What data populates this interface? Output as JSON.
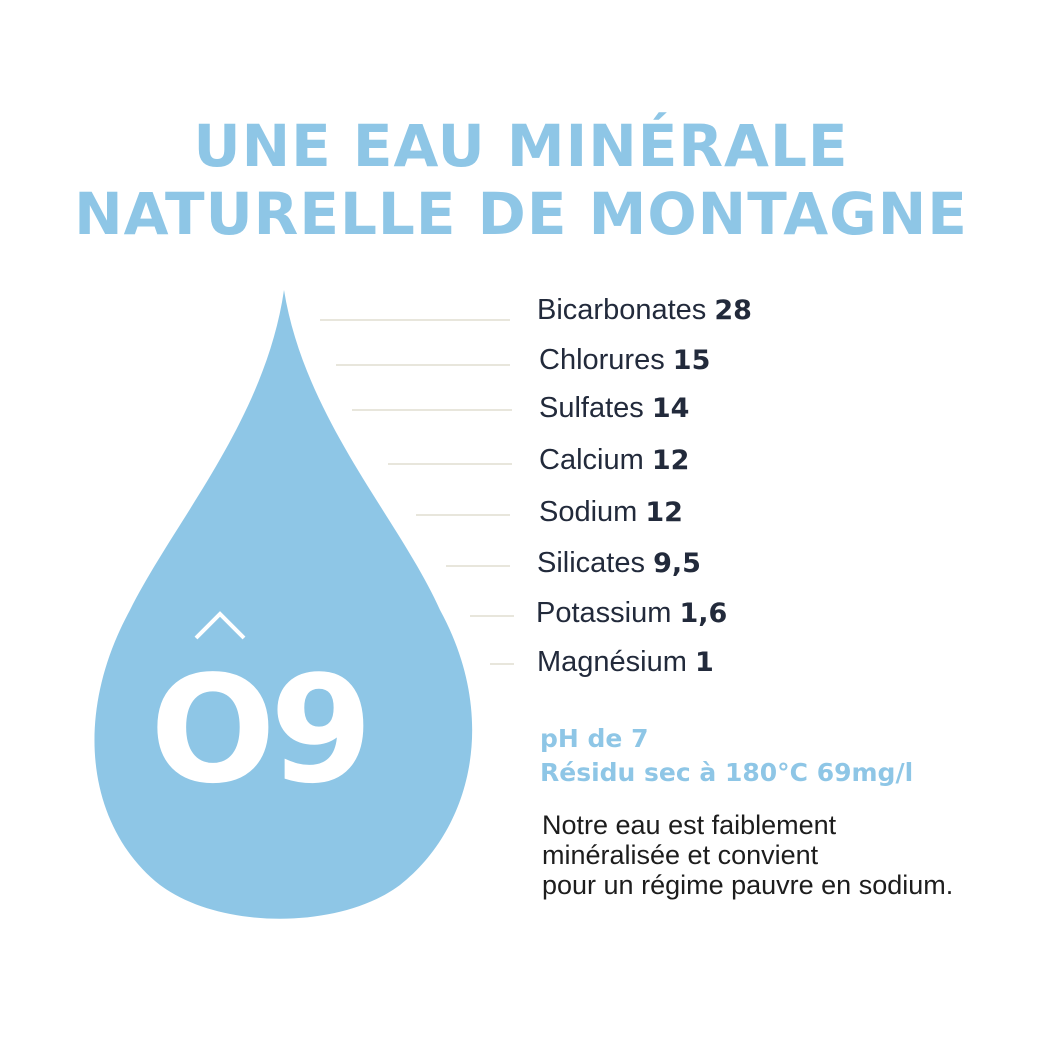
{
  "title": {
    "line1": "UNE EAU MINÉRALE",
    "line2": "NATURELLE DE MONTAGNE"
  },
  "brand": {
    "logo_text": "O9"
  },
  "minerals": [
    {
      "name": "Bicarbonates",
      "value": "28"
    },
    {
      "name": "Chlorures",
      "value": "15"
    },
    {
      "name": "Sulfates",
      "value": "14"
    },
    {
      "name": "Calcium",
      "value": "12"
    },
    {
      "name": "Sodium",
      "value": "12"
    },
    {
      "name": "Silicates",
      "value": "9,5"
    },
    {
      "name": "Potassium",
      "value": "1,6"
    },
    {
      "name": "Magnésium",
      "value": "1"
    }
  ],
  "properties": {
    "ph": "pH de 7",
    "residue": "Résidu sec à 180°C 69mg/l"
  },
  "note": {
    "line1": "Notre eau est faiblement",
    "line2": "minéralisée et convient",
    "line3": "pour un régime pauvre en sodium."
  },
  "colors": {
    "accent": "#8ec6e6",
    "text_dark": "#222a3b",
    "leader_line": "#e8e6dc"
  }
}
